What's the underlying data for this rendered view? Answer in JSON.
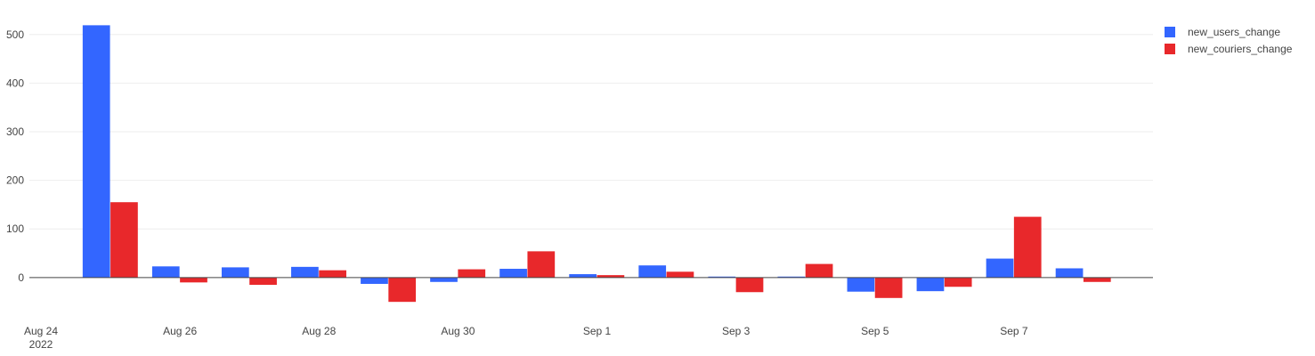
{
  "chart_data": {
    "type": "bar",
    "title": "",
    "xlabel": "",
    "ylabel": "",
    "x": [
      "2022-08-25",
      "2022-08-26",
      "2022-08-27",
      "2022-08-28",
      "2022-08-29",
      "2022-08-30",
      "2022-08-31",
      "2022-09-01",
      "2022-09-02",
      "2022-09-03",
      "2022-09-04",
      "2022-09-05",
      "2022-09-06",
      "2022-09-07",
      "2022-09-08"
    ],
    "x_tick_labels": [
      {
        "date": "2022-08-24",
        "label": "Aug 24",
        "sublabel": "2022"
      },
      {
        "date": "2022-08-26",
        "label": "Aug 26",
        "sublabel": ""
      },
      {
        "date": "2022-08-28",
        "label": "Aug 28",
        "sublabel": ""
      },
      {
        "date": "2022-08-30",
        "label": "Aug 30",
        "sublabel": ""
      },
      {
        "date": "2022-09-01",
        "label": "Sep 1",
        "sublabel": ""
      },
      {
        "date": "2022-09-03",
        "label": "Sep 3",
        "sublabel": ""
      },
      {
        "date": "2022-09-05",
        "label": "Sep 5",
        "sublabel": ""
      },
      {
        "date": "2022-09-07",
        "label": "Sep 7",
        "sublabel": ""
      }
    ],
    "xlim": [
      "2022-08-23T20:00",
      "2022-09-09T00:00"
    ],
    "y_ticks": [
      0,
      100,
      200,
      300,
      400,
      500
    ],
    "ylim": [
      -57,
      538
    ],
    "grid": true,
    "legend_position": "top-right",
    "series": [
      {
        "name": "new_users_change",
        "color": "#3366ff",
        "values": [
          519,
          23,
          21,
          22,
          -13,
          -9,
          18,
          7,
          25,
          2,
          2,
          -29,
          -28,
          39,
          19
        ]
      },
      {
        "name": "new_couriers_change",
        "color": "#e8282b",
        "values": [
          155,
          -10,
          -15,
          15,
          -50,
          17,
          54,
          5,
          12,
          -30,
          28,
          -42,
          -19,
          125,
          -9
        ]
      }
    ]
  }
}
